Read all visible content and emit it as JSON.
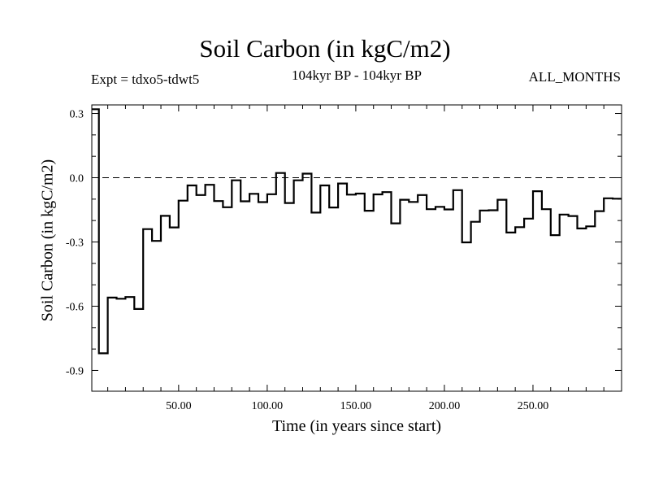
{
  "chart_data": {
    "type": "line",
    "title": "Soil Carbon (in kgC/m2)",
    "experiment": "Expt = tdxo5-tdwt5",
    "period": "104kyr BP - 104kyr BP",
    "months": "ALL_MONTHS",
    "xlabel": "Time (in years since start)",
    "ylabel": "Soil Carbon (in kgC/m2)",
    "xlim": [
      1,
      300
    ],
    "ylim": [
      -0.997,
      0.34
    ],
    "xticks": [
      50,
      100,
      150,
      200,
      250
    ],
    "xtick_labels": [
      "50.00",
      "100.00",
      "150.00",
      "200.00",
      "250.00"
    ],
    "yticks": [
      0.3,
      0.0,
      -0.3,
      -0.6,
      -0.9
    ],
    "ytick_labels": [
      "0.3",
      "0.0",
      "-0.3",
      "-0.6",
      "-0.9"
    ],
    "step": "5-year means, stepped",
    "reference_line": {
      "y": 0.0,
      "style": "dashed"
    },
    "series": [
      {
        "x": [
          0,
          5,
          10,
          15,
          20,
          25,
          30,
          35,
          40,
          45,
          50,
          55,
          60,
          65,
          70,
          75,
          80,
          85,
          90,
          95,
          100,
          105,
          110,
          115,
          120,
          125,
          130,
          135,
          140,
          145,
          150,
          155,
          160,
          165,
          170,
          175,
          180,
          185,
          190,
          195,
          200,
          205,
          210,
          215,
          220,
          225,
          230,
          235,
          240,
          245,
          250,
          255,
          260,
          265,
          270,
          275,
          280,
          285,
          290,
          295,
          300
        ],
        "y": [
          0.32,
          -0.82,
          -0.56,
          -0.565,
          -0.557,
          -0.613,
          -0.24,
          -0.295,
          -0.178,
          -0.232,
          -0.107,
          -0.036,
          -0.081,
          -0.033,
          -0.109,
          -0.138,
          -0.012,
          -0.11,
          -0.075,
          -0.114,
          -0.077,
          0.022,
          -0.118,
          -0.012,
          0.019,
          -0.163,
          -0.036,
          -0.139,
          -0.027,
          -0.079,
          -0.074,
          -0.154,
          -0.078,
          -0.067,
          -0.213,
          -0.103,
          -0.113,
          -0.081,
          -0.147,
          -0.136,
          -0.148,
          -0.058,
          -0.302,
          -0.206,
          -0.153,
          -0.152,
          -0.103,
          -0.256,
          -0.231,
          -0.191,
          -0.063,
          -0.147,
          -0.268,
          -0.172,
          -0.179,
          -0.237,
          -0.227,
          -0.156,
          -0.096,
          -0.098,
          -0.098
        ]
      }
    ]
  }
}
